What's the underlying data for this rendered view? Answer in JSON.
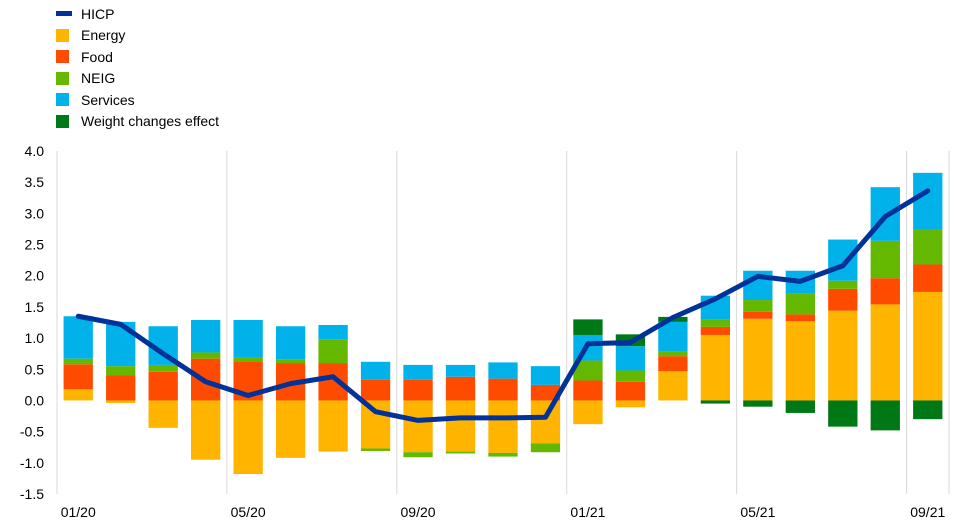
{
  "chart_data": {
    "type": "bar",
    "subtype": "stacked bar with line overlay",
    "title": "",
    "xlabel": "",
    "ylabel": "",
    "ylim": [
      -1.5,
      4.0
    ],
    "yticks": [
      "4.0",
      "3.5",
      "3.0",
      "2.5",
      "2.0",
      "1.5",
      "1.0",
      "0.5",
      "0.0",
      "-0.5",
      "-1.0",
      "-1.5"
    ],
    "ytick_values": [
      4.0,
      3.5,
      3.0,
      2.5,
      2.0,
      1.5,
      1.0,
      0.5,
      0.0,
      -0.5,
      -1.0,
      -1.5
    ],
    "xtick_labels": [
      {
        "index": 0,
        "label": "01/20"
      },
      {
        "index": 4,
        "label": "05/20"
      },
      {
        "index": 8,
        "label": "09/20"
      },
      {
        "index": 12,
        "label": "01/21"
      },
      {
        "index": 16,
        "label": "05/21"
      },
      {
        "index": 20,
        "label": "09/21"
      }
    ],
    "categories": [
      "01/20",
      "02/20",
      "03/20",
      "04/20",
      "05/20",
      "06/20",
      "07/20",
      "08/20",
      "09/20",
      "10/20",
      "11/20",
      "12/20",
      "01/21",
      "02/21",
      "03/21",
      "04/21",
      "05/21",
      "06/21",
      "07/21",
      "08/21",
      "09/21"
    ],
    "grid": "vertical",
    "legend_position": "top-left",
    "series": [
      {
        "name": "Energy",
        "color": "#FFB400",
        "values": [
          0.18,
          -0.04,
          -0.44,
          -0.95,
          -1.18,
          -0.92,
          -0.82,
          -0.77,
          -0.83,
          -0.82,
          -0.84,
          -0.69,
          -0.38,
          -0.11,
          0.47,
          1.05,
          1.31,
          1.27,
          1.44,
          1.54,
          1.74
        ]
      },
      {
        "name": "Food",
        "color": "#FF4B00",
        "values": [
          0.4,
          0.4,
          0.46,
          0.67,
          0.63,
          0.6,
          0.6,
          0.33,
          0.34,
          0.38,
          0.35,
          0.25,
          0.32,
          0.3,
          0.24,
          0.13,
          0.11,
          0.11,
          0.35,
          0.42,
          0.44
        ]
      },
      {
        "name": "NEIG",
        "color": "#65B800",
        "values": [
          0.09,
          0.15,
          0.11,
          0.1,
          0.06,
          0.06,
          0.38,
          -0.04,
          -0.08,
          -0.03,
          -0.06,
          -0.14,
          0.32,
          0.18,
          0.07,
          0.12,
          0.19,
          0.33,
          0.13,
          0.6,
          0.56
        ]
      },
      {
        "name": "Services",
        "color": "#00B1EA",
        "values": [
          0.68,
          0.71,
          0.62,
          0.52,
          0.6,
          0.53,
          0.23,
          0.29,
          0.23,
          0.19,
          0.26,
          0.3,
          0.41,
          0.39,
          0.48,
          0.38,
          0.47,
          0.37,
          0.66,
          0.86,
          0.91
        ]
      },
      {
        "name": "Weight changes effect",
        "color": "#007816",
        "values": [
          0,
          0,
          0,
          0,
          0,
          0,
          0,
          0,
          0,
          0,
          0,
          0,
          0.25,
          0.19,
          0.08,
          -0.05,
          -0.1,
          -0.2,
          -0.42,
          -0.48,
          -0.3
        ]
      },
      {
        "name": "HICP",
        "type": "line",
        "color": "#003299",
        "values": [
          1.35,
          1.22,
          0.75,
          0.3,
          0.08,
          0.27,
          0.38,
          -0.18,
          -0.32,
          -0.28,
          -0.28,
          -0.27,
          0.91,
          0.93,
          1.33,
          1.63,
          1.99,
          1.91,
          2.16,
          2.95,
          3.36
        ]
      }
    ],
    "legend_order": [
      "HICP",
      "Energy",
      "Food",
      "NEIG",
      "Services",
      "Weight changes effect"
    ]
  }
}
